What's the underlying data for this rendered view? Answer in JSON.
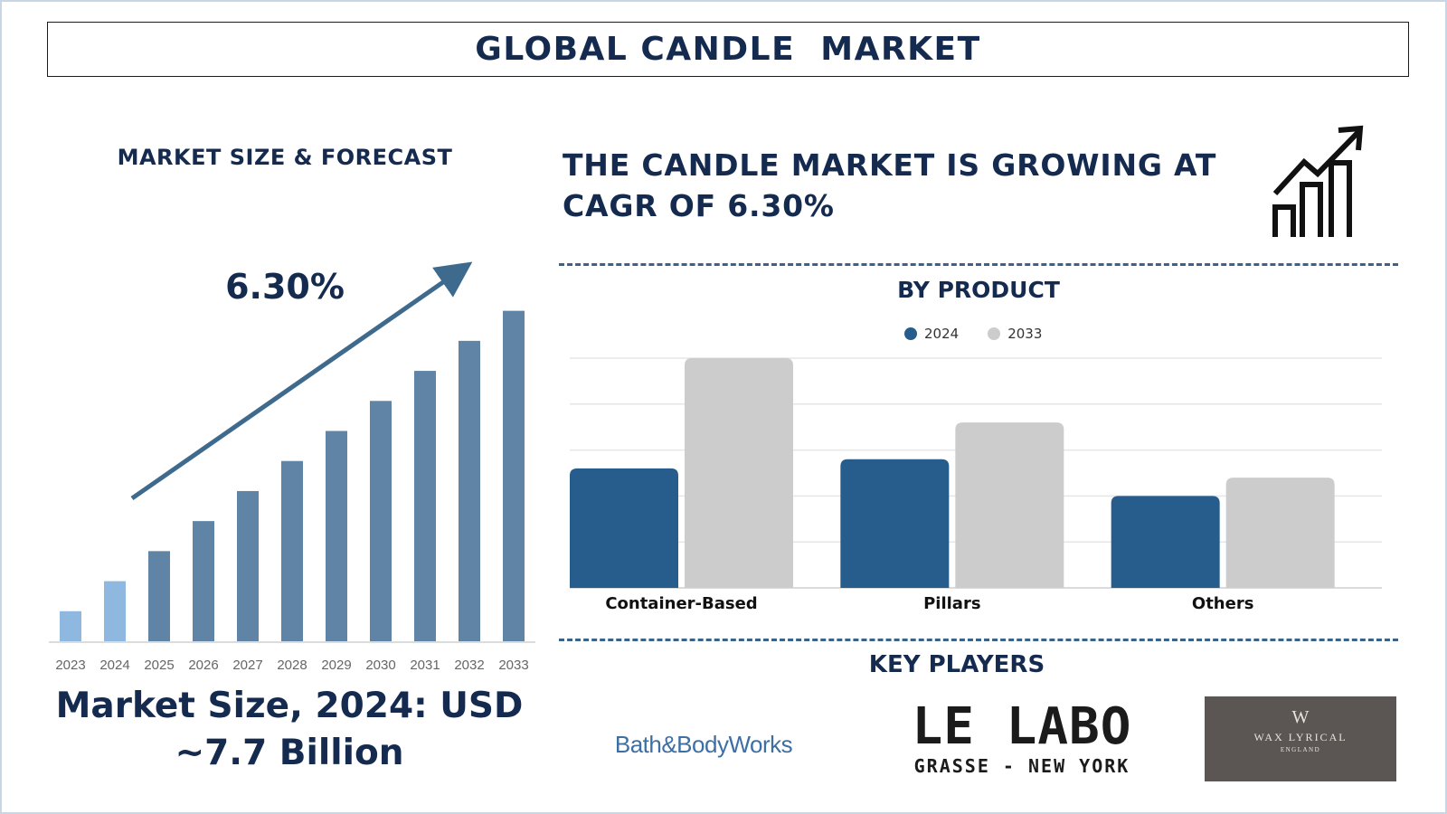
{
  "title": "GLOBAL CANDLE  MARKET",
  "left_panel": {
    "heading": "MARKET SIZE & FORECAST",
    "cagr_label": "6.30%",
    "market_size_line1": "Market Size, 2024: USD",
    "market_size_line2": "~7.7 Billion"
  },
  "right_panel": {
    "heading_line1": "THE CANDLE MARKET IS GROWING AT",
    "heading_line2": "CAGR OF 6.30%",
    "by_product_title": "BY PRODUCT",
    "key_players_title": "KEY PLAYERS",
    "icon": "growth-chart-icon"
  },
  "key_players": [
    {
      "name": "Bath & Body Works",
      "logo_text": "Bath&BodyWorks"
    },
    {
      "name": "Le Labo",
      "logo_line1": "LE LABO",
      "logo_line2": "GRASSE - NEW YORK"
    },
    {
      "name": "Wax Lyrical",
      "logo_mark": "W",
      "logo_line1": "WAX LYRICAL",
      "logo_line2": "ENGLAND"
    }
  ],
  "colors": {
    "navy_text": "#152a4f",
    "bar_light": "#8fb8e0",
    "bar_dark": "#5f84a6",
    "arrow": "#3e6a8e",
    "series_2024": "#275d8c",
    "series_2033": "#cccccc"
  },
  "chart_data": [
    {
      "type": "bar",
      "title": "",
      "categories": [
        "2023",
        "2024",
        "2025",
        "2026",
        "2027",
        "2028",
        "2029",
        "2030",
        "2031",
        "2032",
        "2033"
      ],
      "values": [
        1,
        2,
        3,
        4,
        5,
        6,
        7,
        8,
        9,
        10,
        11
      ],
      "highlight": [
        "2023",
        "2024"
      ],
      "annotation": "6.30%",
      "ylim": [
        0,
        11.2
      ],
      "grid": false
    },
    {
      "type": "bar",
      "title": "BY PRODUCT",
      "categories": [
        "Container-Based",
        "Pillars",
        "Others"
      ],
      "series": [
        {
          "name": "2024",
          "values": [
            2.6,
            2.8,
            2.0
          ]
        },
        {
          "name": "2033",
          "values": [
            5.0,
            3.6,
            2.4
          ]
        }
      ],
      "ylim": [
        0,
        5
      ],
      "grid": true,
      "legend": "top-center"
    }
  ]
}
